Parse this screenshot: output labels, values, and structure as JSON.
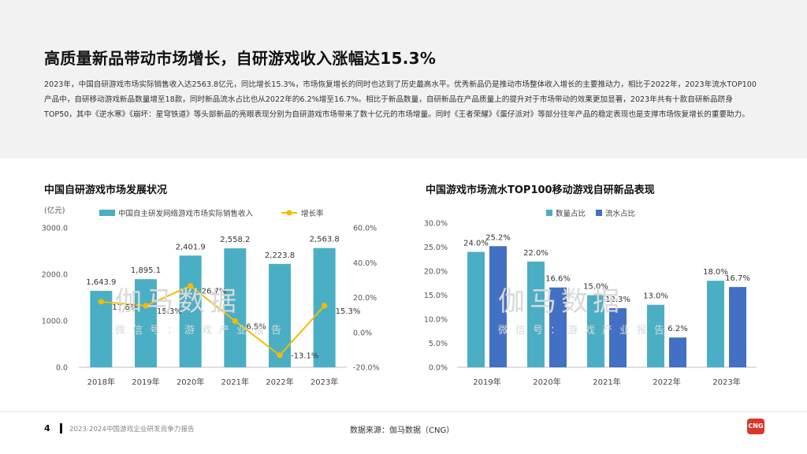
{
  "header": {
    "title": "高质量新品带动市场增长，自研游戏收入涨幅达15.3%",
    "body": "2023年，中国自研游戏市场实际销售收入达2563.8亿元，同比增长15.3%，市场恢复增长的同时也达到了历史最高水平。优秀新品仍是推动市场整体收入增长的主要推动力，相比于2022年，2023年流水TOP100产品中，自研移动游戏新品数量增至18款，同时新品流水占比也从2022年的6.2%增至16.7%。相比于新品数量，自研新品在产品质量上的提升对于市场带动的效果更加显著，2023年共有十款自研新品跻身TOP50，其中《逆水寒》《崩坏：星穹铁道》等头部新品的亮眼表现分别为自研游戏市场带来了数十亿元的市场增量。同时《王者荣耀》《蛋仔派对》等部分往年产品的稳定表现也是支撑市场恢复增长的重要助力。"
  },
  "watermark": {
    "big": "伽马数据",
    "small": "微信号：游戏产业报告"
  },
  "footer": {
    "page": "4",
    "report": "2023-2024中国游戏企业研发竞争力报告",
    "source": "数据来源：伽马数据（CNG）",
    "logo": "CNG"
  },
  "colors": {
    "bar_teal": "#4aafc4",
    "bar_blue": "#4270c4",
    "line_yellow": "#f5bb00"
  },
  "chart_data": [
    {
      "type": "bar",
      "title": "中国自研游戏市场发展状况",
      "ylabel": "(亿元)",
      "categories": [
        "2018年",
        "2019年",
        "2020年",
        "2021年",
        "2022年",
        "2023年"
      ],
      "series": [
        {
          "name": "中国自主研发网络游戏市场实际销售收入",
          "type": "bar",
          "axis": "left",
          "values": [
            1643.9,
            1895.1,
            2401.9,
            2558.2,
            2223.8,
            2563.8
          ],
          "labels": [
            "1,643.9",
            "1,895.1",
            "2,401.9",
            "2,558.2",
            "2,223.8",
            "2,563.8"
          ]
        },
        {
          "name": "增长率",
          "type": "line",
          "axis": "right",
          "values": [
            17.6,
            15.3,
            26.7,
            6.5,
            -13.1,
            15.3
          ],
          "labels": [
            "17.6%",
            "15.3%",
            "26.7%",
            "6.5%",
            "-13.1%",
            "15.3%"
          ]
        }
      ],
      "ylim": [
        0,
        3000
      ],
      "yticks": [
        "3000.0",
        "2000.0",
        "1000.0",
        "0.0"
      ],
      "y2lim": [
        -20,
        60
      ],
      "y2ticks": [
        "60.0%",
        "40.0%",
        "20.0%",
        "0.0%",
        "-20.0%"
      ],
      "grid": false,
      "legend": "top"
    },
    {
      "type": "bar",
      "title": "中国游戏市场流水TOP100移动游戏自研新品表现",
      "categories": [
        "2019年",
        "2020年",
        "2021年",
        "2022年",
        "2023年"
      ],
      "series": [
        {
          "name": "数量占比",
          "values": [
            24.0,
            22.0,
            15.0,
            13.0,
            18.0
          ],
          "labels": [
            "24.0%",
            "22.0%",
            "15.0%",
            "13.0%",
            "18.0%"
          ]
        },
        {
          "name": "流水占比",
          "values": [
            25.2,
            16.6,
            12.3,
            6.2,
            16.7
          ],
          "labels": [
            "25.2%",
            "16.6%",
            "12.3%",
            "6.2%",
            "16.7%"
          ]
        }
      ],
      "ylim": [
        0,
        30
      ],
      "yticks": [
        "30.0%",
        "25.0%",
        "20.0%",
        "15.0%",
        "10.0%",
        "5.0%",
        "0.0%"
      ],
      "grid": false,
      "legend": "top"
    }
  ]
}
